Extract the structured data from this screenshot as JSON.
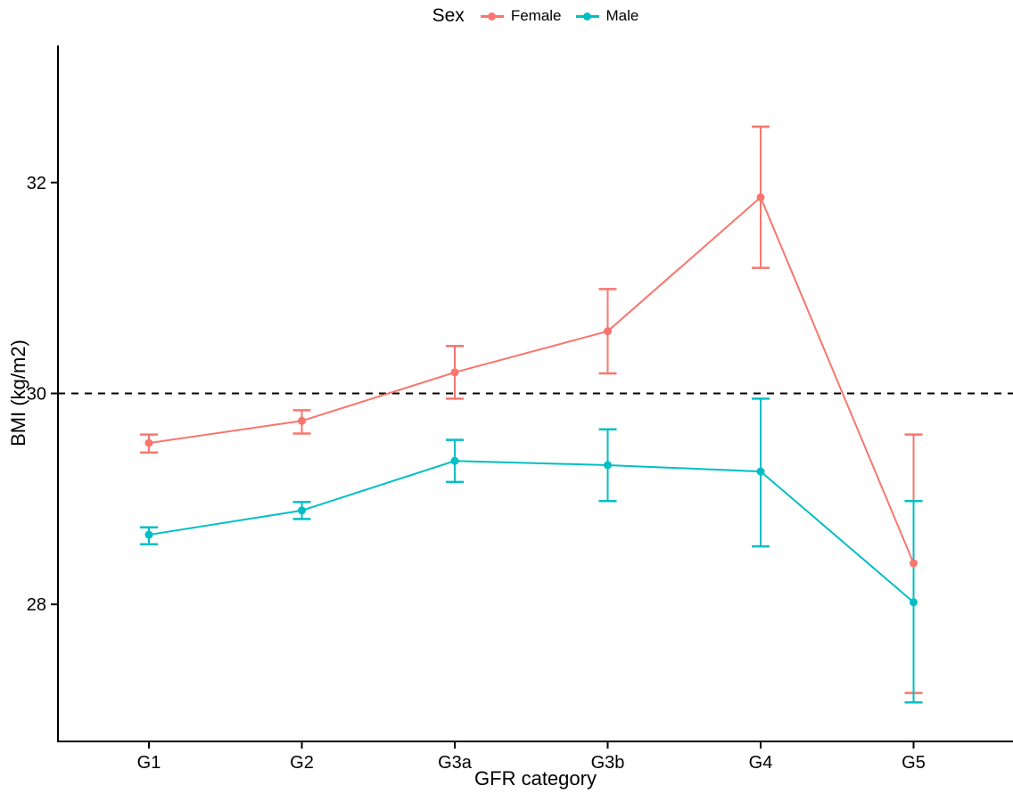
{
  "chart_data": {
    "type": "line",
    "title": "",
    "xlabel": "GFR category",
    "ylabel": "BMI (kg/m2)",
    "legend_title": "Sex",
    "legend_position": "top",
    "grid": false,
    "error_bars": true,
    "categories": [
      "G1",
      "G2",
      "G3a",
      "G3b",
      "G4",
      "G5"
    ],
    "y_ticks": [
      "28",
      "30",
      "32"
    ],
    "ylim": [
      26.7,
      33.3
    ],
    "reference_line": {
      "y": 30,
      "style": "dashed",
      "color": "#000000"
    },
    "series": [
      {
        "name": "Female",
        "color": "#F8766D",
        "values": [
          29.53,
          29.74,
          30.2,
          30.59,
          31.86,
          28.39
        ],
        "ci_low": [
          29.44,
          29.62,
          29.95,
          30.19,
          31.19,
          27.16
        ],
        "ci_high": [
          29.61,
          29.84,
          30.45,
          30.99,
          32.53,
          29.61
        ]
      },
      {
        "name": "Male",
        "color": "#00BFC4",
        "values": [
          28.66,
          28.89,
          29.36,
          29.32,
          29.26,
          28.02
        ],
        "ci_low": [
          28.57,
          28.81,
          29.16,
          28.98,
          28.55,
          27.07
        ],
        "ci_high": [
          28.73,
          28.97,
          29.56,
          29.66,
          29.95,
          28.98
        ]
      }
    ]
  }
}
